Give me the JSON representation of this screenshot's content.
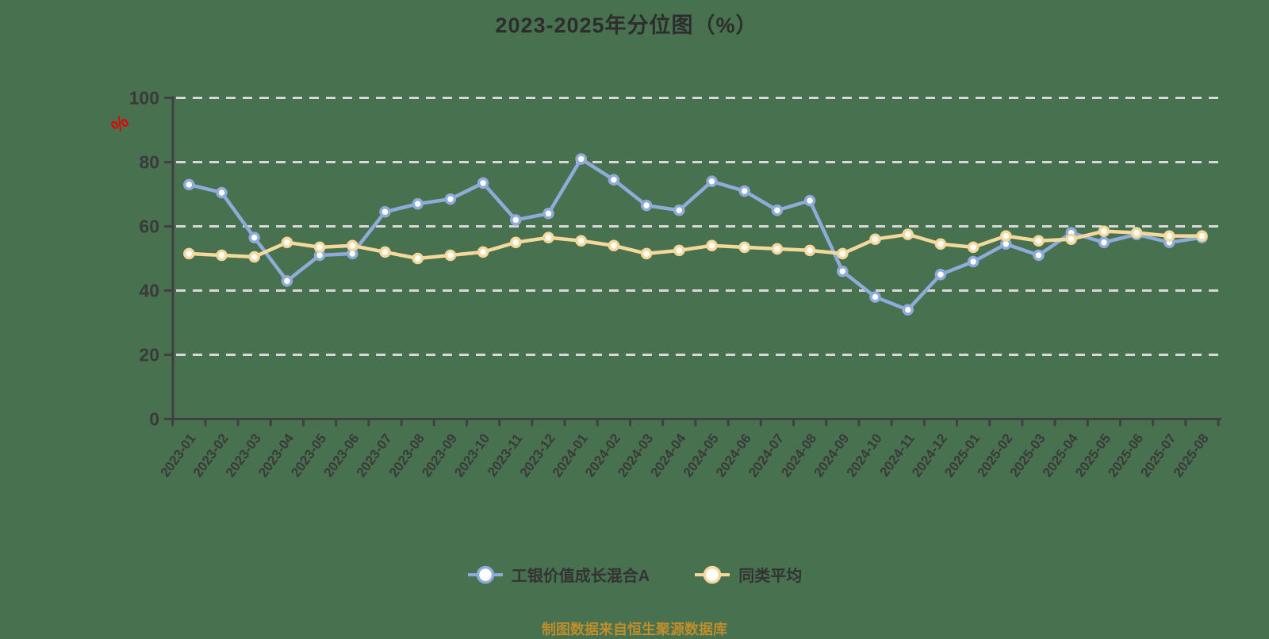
{
  "title": "2023-2025年分位图（%）",
  "y_axis_unit_label": "%",
  "footer": "制图数据来自恒生聚源数据库",
  "colors": {
    "background": "#48714F",
    "axis": "#404040",
    "gridline": "#D8D8D8",
    "tick_label": "#3A3A3A",
    "title_text": "#2D2D2D",
    "unit_label_red": "#E60000",
    "footer_text": "#BD8E2B",
    "series_fund": "#8EABD9",
    "series_average": "#F5D99C",
    "marker_fill": "#FFFFFF"
  },
  "chart_data": {
    "type": "line",
    "title": "2023-2025年分位图（%）",
    "xlabel": "",
    "ylabel": "%",
    "ylim": [
      0,
      100
    ],
    "y_ticks": [
      0,
      20,
      40,
      60,
      80,
      100
    ],
    "grid": "horizontal dashed",
    "legend_position": "bottom",
    "categories": [
      "2023-01",
      "2023-02",
      "2023-03",
      "2023-04",
      "2023-05",
      "2023-06",
      "2023-07",
      "2023-08",
      "2023-09",
      "2023-10",
      "2023-11",
      "2023-12",
      "2024-01",
      "2024-02",
      "2024-03",
      "2024-04",
      "2024-05",
      "2024-06",
      "2024-07",
      "2024-08",
      "2024-09",
      "2024-10",
      "2024-11",
      "2024-12",
      "2025-01",
      "2025-02",
      "2025-03",
      "2025-04",
      "2025-05",
      "2025-06",
      "2025-07",
      "2025-08"
    ],
    "series": [
      {
        "name": "工银价值成长混合A",
        "color": "#8EABD9",
        "values": [
          73,
          70.5,
          56.5,
          43,
          51,
          51.5,
          64.5,
          67,
          68.5,
          73.5,
          62,
          64,
          81,
          74.5,
          66.5,
          65,
          74,
          71,
          65,
          68,
          46,
          38,
          34,
          45,
          49,
          54.5,
          51,
          58,
          55,
          57.5,
          55,
          56.5
        ]
      },
      {
        "name": "同类平均",
        "color": "#F5D99C",
        "values": [
          51.5,
          51,
          50.5,
          55,
          53.5,
          54,
          52,
          50,
          51,
          52,
          55,
          56.5,
          55.5,
          54,
          51.5,
          52.5,
          54,
          53.5,
          53,
          52.5,
          51.5,
          56,
          57.5,
          54.5,
          53.5,
          57,
          55.5,
          56,
          58.5,
          58,
          57,
          57
        ]
      }
    ]
  }
}
